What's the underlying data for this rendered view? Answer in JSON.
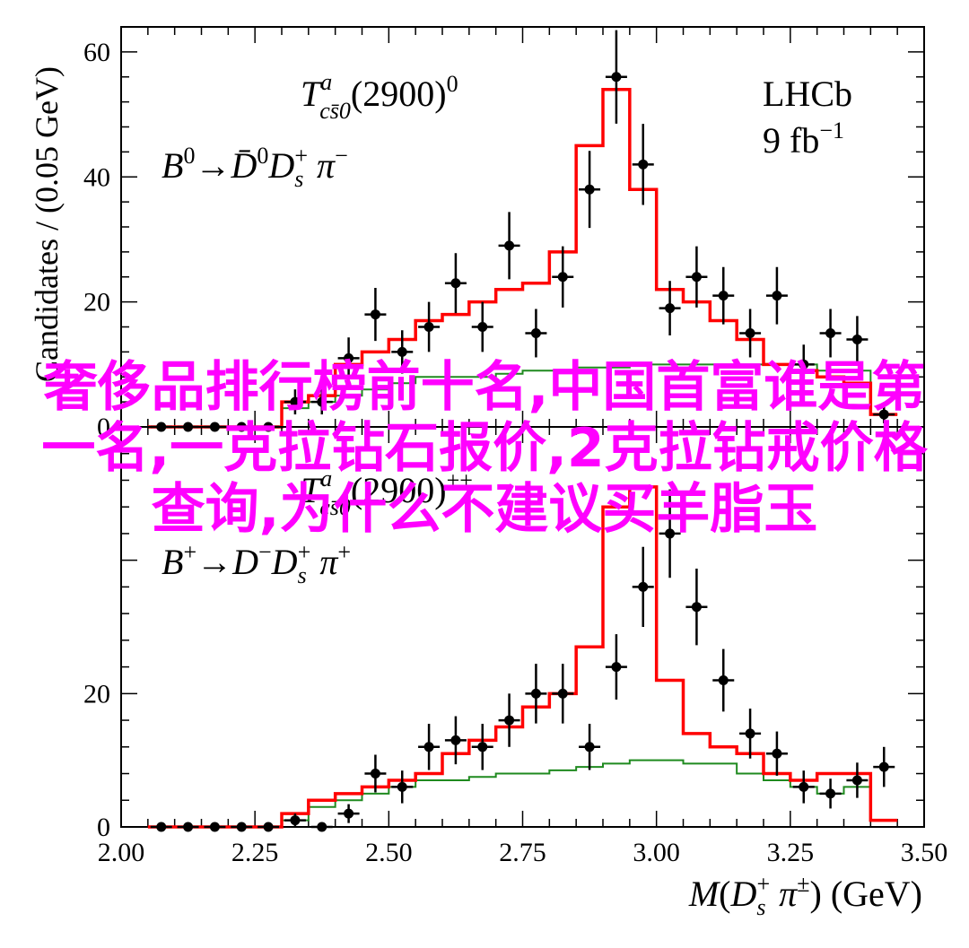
{
  "chart_data": [
    {
      "type": "scatter",
      "panel": "top",
      "annotation_title": "T^a_{cs̄0}(2900)^0",
      "annotation_decay": "B^0 → D̄^0 D_s^+ π^−",
      "experiment": "LHCb",
      "luminosity": "9 fb^−1",
      "ylabel": "Candidates / (0.05 GeV)",
      "ylim": [
        0,
        64
      ],
      "xlim": [
        2.0,
        3.5
      ],
      "yticks": [
        "0",
        "20",
        "40",
        "60"
      ],
      "data_x": [
        2.075,
        2.125,
        2.175,
        2.225,
        2.275,
        2.325,
        2.375,
        2.425,
        2.475,
        2.525,
        2.575,
        2.625,
        2.675,
        2.725,
        2.775,
        2.825,
        2.875,
        2.925,
        2.975,
        3.025,
        3.075,
        3.125,
        3.175,
        3.225,
        3.275,
        3.325,
        3.375,
        3.425
      ],
      "data_y": [
        0,
        0,
        0,
        0,
        0,
        4,
        4,
        11,
        18,
        12,
        16,
        23,
        16,
        29,
        15,
        24,
        38,
        56,
        42,
        19,
        24,
        21,
        15,
        21,
        10,
        15,
        14,
        2
      ],
      "fit_total_y": [
        0,
        0,
        0,
        0,
        0,
        4,
        5,
        10,
        12,
        14,
        17,
        18,
        20,
        22,
        23,
        28,
        45,
        54,
        38,
        22,
        20,
        17,
        14,
        10,
        9,
        8,
        7,
        2
      ],
      "fit_background_y": [
        0,
        0,
        0,
        0,
        0,
        3,
        4,
        5,
        6,
        7,
        8,
        8,
        8,
        8.5,
        9,
        9,
        9.5,
        9.5,
        10,
        10,
        10,
        10,
        10,
        10,
        10,
        9,
        9,
        2
      ]
    },
    {
      "type": "scatter",
      "panel": "bottom",
      "annotation_title": "T^a_{cs̄0}(2900)^{++}",
      "annotation_decay": "B^+ → D^− D_s^+ π^+",
      "xlabel": "M(D_s^+ π^±) (GeV)",
      "ylabel": "Candidates / (0.05 GeV)",
      "ylim": [
        0,
        60
      ],
      "xlim": [
        2.0,
        3.5
      ],
      "yticks": [
        "0",
        "20"
      ],
      "xticks": [
        "2.00",
        "2.25",
        "2.50",
        "2.75",
        "3.00",
        "3.25",
        "3.50"
      ],
      "data_x": [
        2.075,
        2.125,
        2.175,
        2.225,
        2.275,
        2.325,
        2.375,
        2.425,
        2.475,
        2.525,
        2.575,
        2.625,
        2.675,
        2.725,
        2.775,
        2.825,
        2.875,
        2.925,
        2.975,
        3.025,
        3.075,
        3.125,
        3.175,
        3.225,
        3.275,
        3.325,
        3.375,
        3.425
      ],
      "data_y": [
        0,
        0,
        0,
        0,
        0,
        1,
        0,
        2,
        8,
        6,
        12,
        13,
        12,
        16,
        20,
        20,
        12,
        24,
        36,
        44,
        33,
        22,
        14,
        11,
        6,
        5,
        7,
        9
      ],
      "fit_total_y": [
        0,
        0,
        0,
        0,
        0,
        2,
        4,
        5,
        6,
        7,
        8,
        11,
        13,
        15,
        18,
        20,
        27,
        48,
        51,
        22,
        14,
        12,
        11,
        8,
        7,
        8,
        8,
        1
      ],
      "fit_background_y": [
        0,
        0,
        0,
        0,
        0,
        1,
        3,
        4,
        5,
        6,
        7,
        7,
        7.5,
        8,
        8,
        8.5,
        9,
        9.5,
        10,
        10,
        9.5,
        9.5,
        8,
        7,
        6,
        5,
        6,
        1
      ]
    }
  ],
  "overlay_text": "奢侈品排行榜前十名,中国首富谁是第一名,一克拉钻石报价,2克拉钻戒价格查询,为什么不建议买羊脂玉"
}
